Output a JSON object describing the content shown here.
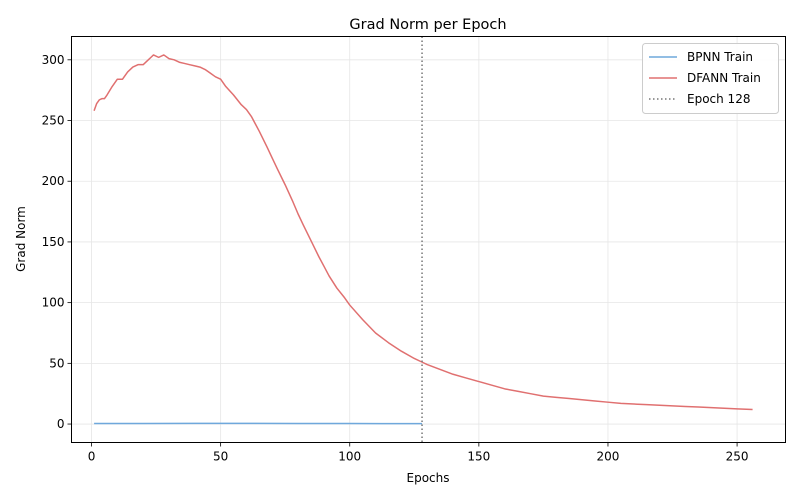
{
  "chart_data": {
    "type": "line",
    "title": "Grad Norm per Epoch",
    "xlabel": "Epochs",
    "ylabel": "Grad Norm",
    "xlim": [
      -7.75,
      268.75
    ],
    "ylim": [
      -15.2,
      319.2
    ],
    "x_ticks": [
      0,
      50,
      100,
      150,
      200,
      250
    ],
    "y_ticks": [
      0,
      50,
      100,
      150,
      200,
      250,
      300
    ],
    "grid": true,
    "legend_position": "top-right",
    "series": [
      {
        "name": "BPNN Train",
        "color": "#6fa8dc",
        "x": [
          1,
          20,
          40,
          60,
          80,
          100,
          120,
          128
        ],
        "y": [
          0.5,
          0.5,
          0.6,
          0.6,
          0.5,
          0.4,
          0.3,
          0.3
        ]
      },
      {
        "name": "DFANN Train",
        "color": "#e07070",
        "x": [
          1,
          2,
          3,
          4,
          5,
          6,
          8,
          10,
          12,
          14,
          16,
          18,
          20,
          22,
          23,
          24,
          26,
          28,
          30,
          32,
          34,
          36,
          38,
          40,
          42,
          44,
          46,
          48,
          50,
          52,
          55,
          58,
          60,
          62,
          65,
          68,
          70,
          72,
          75,
          78,
          80,
          82,
          85,
          88,
          90,
          92,
          95,
          98,
          100,
          105,
          110,
          115,
          120,
          125,
          128,
          130,
          135,
          140,
          145,
          150,
          155,
          160,
          165,
          170,
          175,
          180,
          185,
          190,
          195,
          200,
          205,
          210,
          215,
          220,
          225,
          230,
          235,
          240,
          245,
          250,
          256
        ],
        "y": [
          258,
          264,
          267,
          268,
          268,
          271,
          278,
          284,
          284,
          290,
          294,
          296,
          296,
          300,
          302,
          304,
          302,
          304,
          301,
          300,
          298,
          297,
          296,
          295,
          294,
          292,
          289,
          286,
          284,
          278,
          271,
          263,
          259,
          253,
          241,
          228,
          219,
          210,
          197,
          183,
          173,
          164,
          151,
          138,
          130,
          122,
          112,
          104,
          98,
          86,
          75,
          67,
          60,
          54,
          51,
          49,
          45,
          41,
          38,
          35,
          32,
          29,
          27,
          25,
          23,
          22,
          21,
          20,
          19,
          18,
          17,
          16.5,
          16,
          15.5,
          15,
          14.5,
          14,
          13.5,
          13,
          12.5,
          12
        ]
      },
      {
        "name": "Epoch 128",
        "color": "#777777",
        "style": "dotted",
        "vline_x": 128
      }
    ]
  }
}
